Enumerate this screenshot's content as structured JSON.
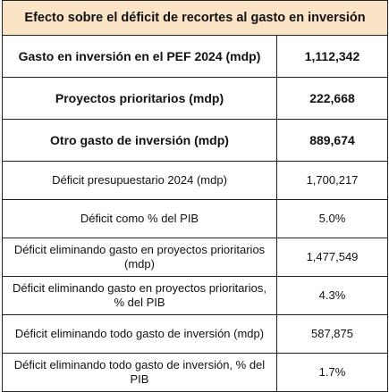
{
  "header": {
    "title": "Efecto sobre el déficit de recortes al gasto en inversión"
  },
  "table": {
    "rows": [
      [
        "Gasto en inversión en el PEF 2024 (mdp)",
        "1,112,342"
      ],
      [
        "Proyectos prioritarios (mdp)",
        "222,668"
      ],
      [
        "Otro gasto de inversión (mdp)",
        "889,674"
      ],
      [
        "Déficit presupuestario 2024 (mdp)",
        "1,700,217"
      ],
      [
        "Déficit como % del PIB",
        "5.0%"
      ],
      [
        "Déficit eliminando gasto en proyectos prioritarios (mdp)",
        "1,477,549"
      ],
      [
        "Déficit eliminando gasto en proyectos prioritarios, % del PIB",
        "4.3%"
      ],
      [
        "Déficit eliminando todo gasto de inversión (mdp)",
        "587,875"
      ],
      [
        "Déficit eliminando todo gasto de inversión, % del PIB",
        "1.7%"
      ]
    ]
  }
}
